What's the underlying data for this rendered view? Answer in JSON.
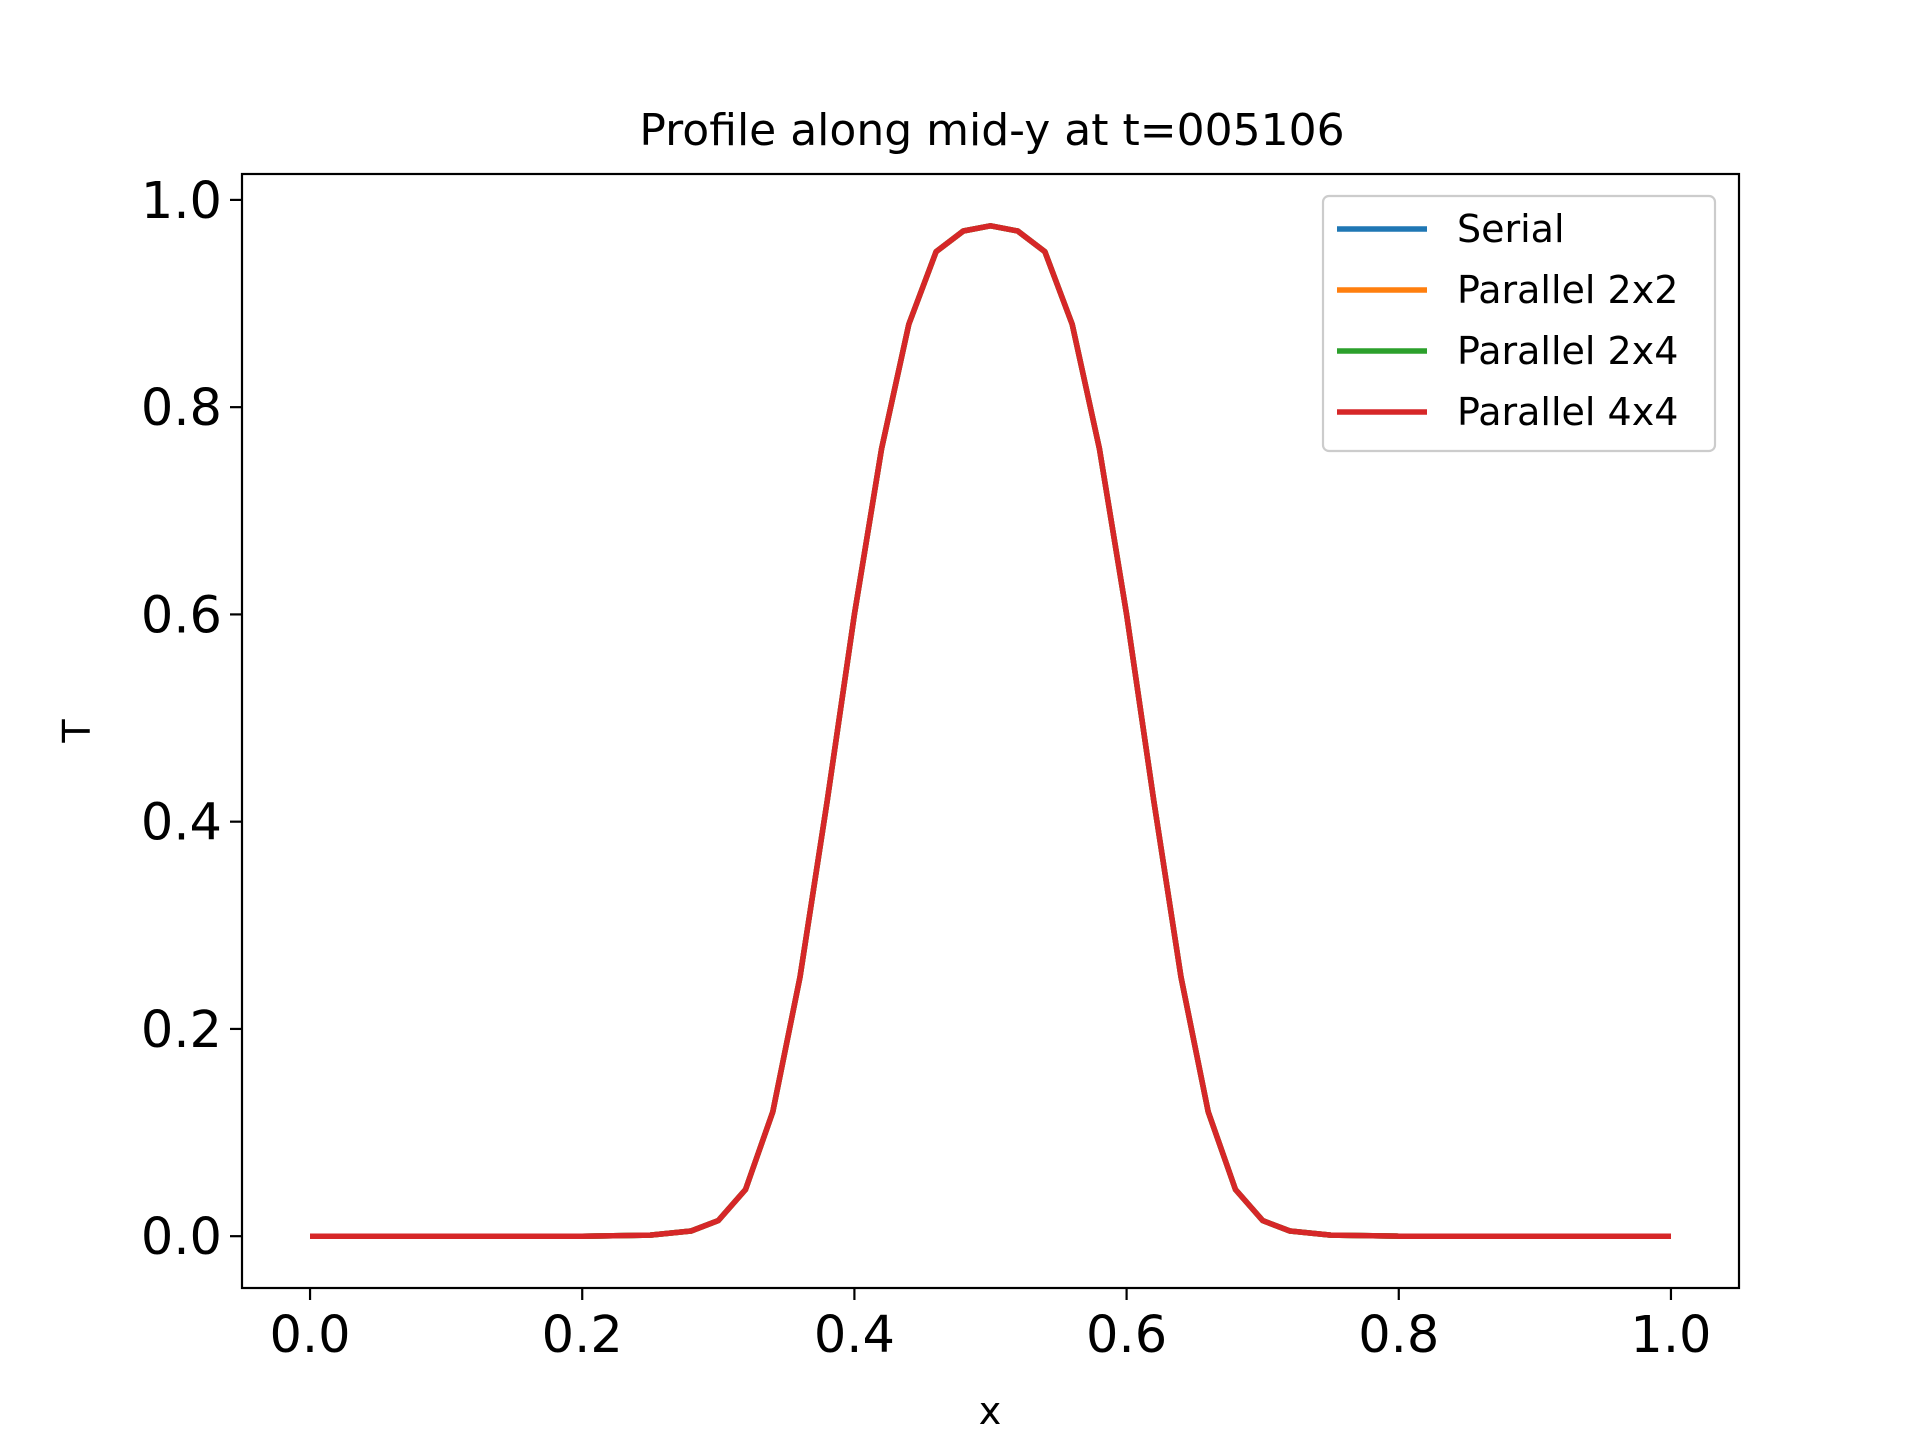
{
  "chart_data": {
    "type": "line",
    "title": "Profile along mid-y at t=005106",
    "xlabel": "x",
    "ylabel": "T",
    "xlim": [
      -0.05,
      1.05
    ],
    "ylim": [
      -0.05,
      1.025
    ],
    "xticks": [
      0.0,
      0.2,
      0.4,
      0.6,
      0.8,
      1.0
    ],
    "yticks": [
      0.0,
      0.2,
      0.4,
      0.6,
      0.8,
      1.0
    ],
    "xtick_labels": [
      "0.0",
      "0.2",
      "0.4",
      "0.6",
      "0.8",
      "1.0"
    ],
    "ytick_labels": [
      "0.0",
      "0.2",
      "0.4",
      "0.6",
      "0.8",
      "1.0"
    ],
    "grid": false,
    "legend_position": "top-right",
    "x": [
      0.0,
      0.1,
      0.2,
      0.25,
      0.28,
      0.3,
      0.32,
      0.34,
      0.36,
      0.38,
      0.4,
      0.42,
      0.44,
      0.46,
      0.48,
      0.5,
      0.52,
      0.54,
      0.56,
      0.58,
      0.6,
      0.62,
      0.64,
      0.66,
      0.68,
      0.7,
      0.72,
      0.75,
      0.8,
      0.9,
      1.0
    ],
    "series": [
      {
        "name": "Serial",
        "color": "#1f77b4",
        "y": [
          0.0,
          0.0,
          0.0,
          0.001,
          0.005,
          0.015,
          0.045,
          0.12,
          0.25,
          0.42,
          0.6,
          0.76,
          0.88,
          0.95,
          0.97,
          0.975,
          0.97,
          0.95,
          0.88,
          0.76,
          0.6,
          0.42,
          0.25,
          0.12,
          0.045,
          0.015,
          0.005,
          0.001,
          0.0,
          0.0,
          0.0
        ]
      },
      {
        "name": "Parallel 2x2",
        "color": "#ff7f0e",
        "y": [
          0.0,
          0.0,
          0.0,
          0.001,
          0.005,
          0.015,
          0.045,
          0.12,
          0.25,
          0.42,
          0.6,
          0.76,
          0.88,
          0.95,
          0.97,
          0.975,
          0.97,
          0.95,
          0.88,
          0.76,
          0.6,
          0.42,
          0.25,
          0.12,
          0.045,
          0.015,
          0.005,
          0.001,
          0.0,
          0.0,
          0.0
        ]
      },
      {
        "name": "Parallel 2x4",
        "color": "#2ca02c",
        "y": [
          0.0,
          0.0,
          0.0,
          0.001,
          0.005,
          0.015,
          0.045,
          0.12,
          0.25,
          0.42,
          0.6,
          0.76,
          0.88,
          0.95,
          0.97,
          0.975,
          0.97,
          0.95,
          0.88,
          0.76,
          0.6,
          0.42,
          0.25,
          0.12,
          0.045,
          0.015,
          0.005,
          0.001,
          0.0,
          0.0,
          0.0
        ]
      },
      {
        "name": "Parallel 4x4",
        "color": "#d62728",
        "y": [
          0.0,
          0.0,
          0.0,
          0.001,
          0.005,
          0.015,
          0.045,
          0.12,
          0.25,
          0.42,
          0.6,
          0.76,
          0.88,
          0.95,
          0.97,
          0.975,
          0.97,
          0.95,
          0.88,
          0.76,
          0.6,
          0.42,
          0.25,
          0.12,
          0.045,
          0.015,
          0.005,
          0.001,
          0.0,
          0.0,
          0.0
        ]
      }
    ]
  }
}
